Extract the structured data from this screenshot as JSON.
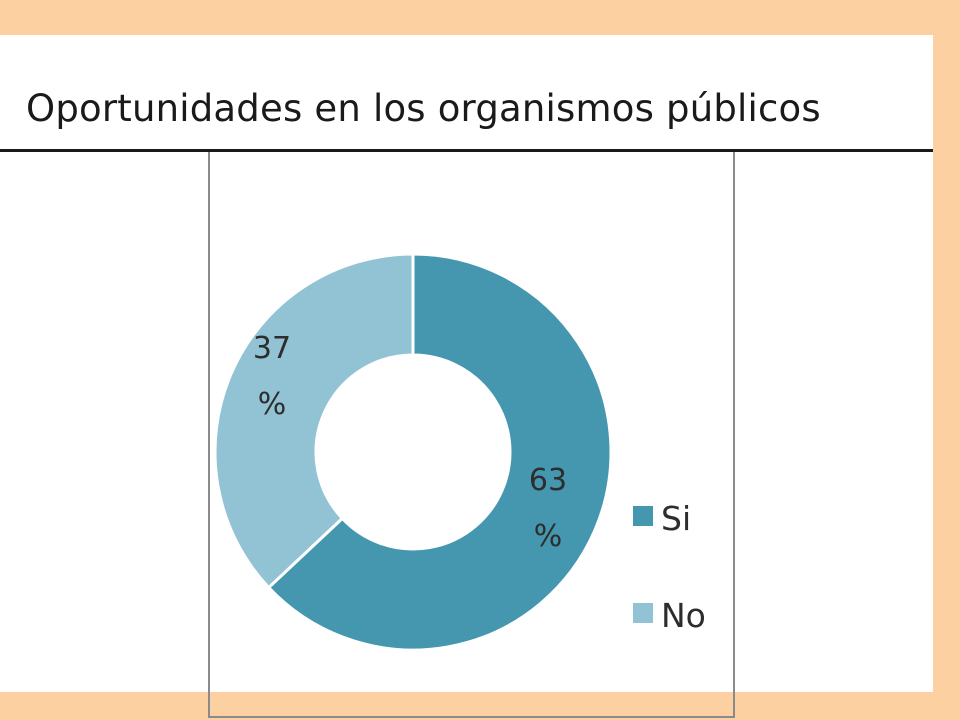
{
  "chart_data": {
    "type": "pie",
    "title": "Oportunidades en los organismos públicos",
    "categories": [
      "Si",
      "No"
    ],
    "values": [
      63,
      37
    ],
    "colors": [
      "#4497af",
      "#92c3d4"
    ],
    "data_labels": [
      {
        "number": "63",
        "unit": "%"
      },
      {
        "number": "37",
        "unit": "%"
      }
    ],
    "legend_position": "bottom-right",
    "style": "doughnut"
  }
}
